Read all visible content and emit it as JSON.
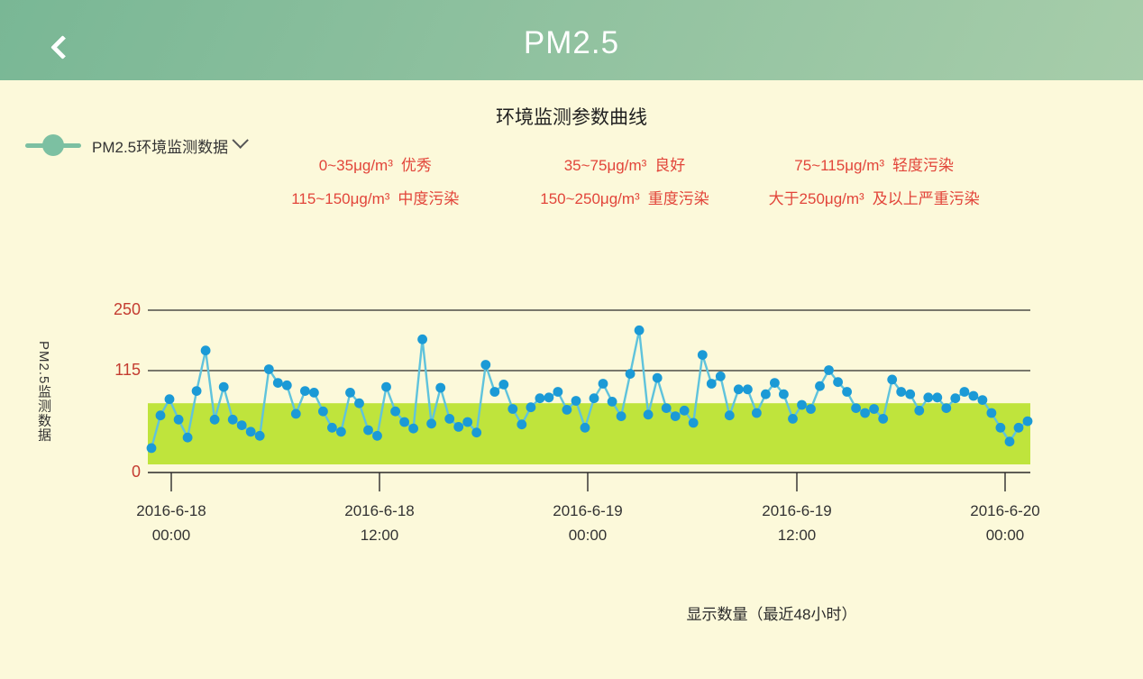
{
  "header": {
    "title": "PM2.5",
    "back_icon": "chevron-left"
  },
  "page": {
    "title": "环境监测参数曲线",
    "caption": "显示数量（最近48小时）"
  },
  "legend": {
    "label": "PM2.5环境监测数据"
  },
  "thresholds": [
    {
      "range": "0~35μg/m³",
      "label": "优秀"
    },
    {
      "range": "35~75μg/m³",
      "label": "良好"
    },
    {
      "range": "75~115μg/m³",
      "label": "轻度污染"
    },
    {
      "range": "115~150μg/m³",
      "label": "中度污染"
    },
    {
      "range": "150~250μg/m³",
      "label": "重度污染"
    },
    {
      "range": "大于250μg/m³",
      "label": "及以上严重污染"
    }
  ],
  "chart_data": {
    "type": "line",
    "title": "环境监测参数曲线",
    "ylabel": "PM2.5监测数据",
    "xlabel": "",
    "grid": true,
    "legend_position": "top-left",
    "y_ticks": [
      "0",
      "115",
      "250"
    ],
    "ylim": [
      0,
      270
    ],
    "y_scale_note": "piecewise: 0-115 expanded, 115-250 compressed",
    "x_tick_labels": [
      [
        "2016-6-18",
        "00:00"
      ],
      [
        "2016-6-18",
        "12:00"
      ],
      [
        "2016-6-19",
        "00:00"
      ],
      [
        "2016-6-19",
        "12:00"
      ],
      [
        "2016-6-20",
        "00:00"
      ]
    ],
    "band": {
      "low": 0,
      "high": 75,
      "meaning": "0~75μg/m³ 优良区间"
    },
    "series": [
      {
        "name": "PM2.5环境监测数据",
        "unit": "μg/m³",
        "interval": "30min",
        "values": [
          20,
          60,
          80,
          55,
          33,
          90,
          160,
          55,
          95,
          55,
          48,
          40,
          35,
          118,
          100,
          97,
          62,
          90,
          88,
          65,
          45,
          40,
          88,
          75,
          42,
          35,
          95,
          65,
          52,
          44,
          185,
          50,
          94,
          56,
          46,
          52,
          39,
          128,
          89,
          98,
          68,
          49,
          70,
          81,
          82,
          89,
          67,
          78,
          45,
          81,
          99,
          77,
          59,
          111,
          205,
          61,
          106,
          69,
          59,
          66,
          51,
          150,
          99,
          108,
          60,
          92,
          92,
          63,
          86,
          100,
          86,
          56,
          73,
          68,
          96,
          116,
          101,
          89,
          69,
          63,
          68,
          56,
          104,
          89,
          86,
          66,
          82,
          82,
          69,
          81,
          89,
          84,
          79,
          63,
          45,
          28,
          45,
          53
        ]
      }
    ],
    "colors": {
      "dot": "#1b9ad6",
      "line": "#5fc3dc",
      "band": "#bfe43c",
      "grid": "#2b2b2b",
      "axis_label": "#c43c30",
      "threshold_text": "#e2453a",
      "header_gradient_start": "#79b795",
      "header_gradient_end": "#a7cdaa",
      "background": "#fcf9da"
    }
  }
}
